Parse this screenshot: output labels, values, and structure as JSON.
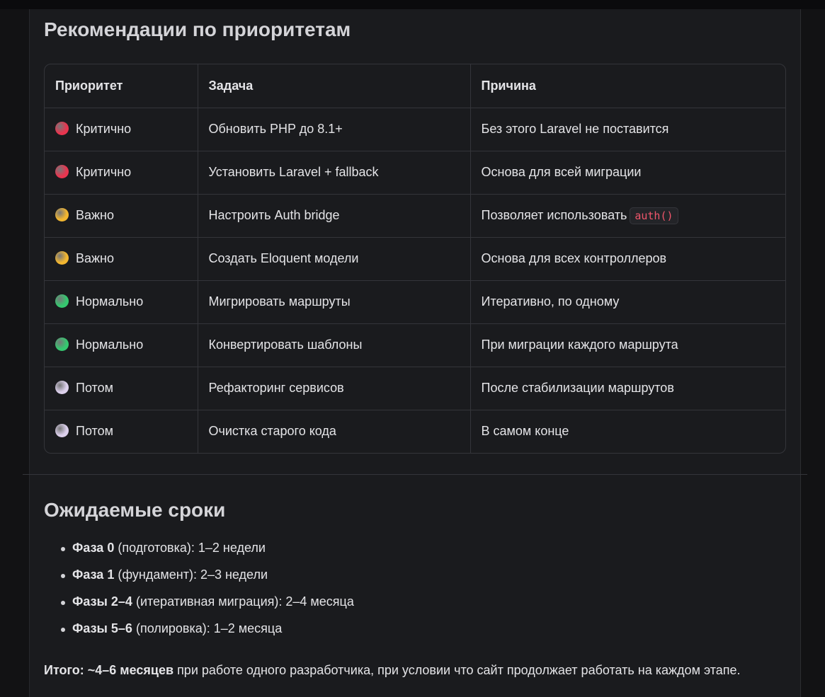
{
  "section1": {
    "title": "Рекомендации по приоритетам",
    "table": {
      "headers": [
        "Приоритет",
        "Задача",
        "Причина"
      ],
      "rows": [
        {
          "priority": "Критично",
          "color": "#e8354f",
          "task": "Обновить PHP до 8.1+",
          "reason": "Без этого Laravel не поставится",
          "code": ""
        },
        {
          "priority": "Критично",
          "color": "#e8354f",
          "task": "Установить Laravel + fallback",
          "reason": "Основа для всей миграции",
          "code": ""
        },
        {
          "priority": "Важно",
          "color": "#f2b630",
          "task": "Настроить Auth bridge",
          "reason": "Позволяет использовать",
          "code": "auth()"
        },
        {
          "priority": "Важно",
          "color": "#f2b630",
          "task": "Создать Eloquent модели",
          "reason": "Основа для всех контроллеров",
          "code": ""
        },
        {
          "priority": "Нормально",
          "color": "#35c76f",
          "task": "Мигрировать маршруты",
          "reason": "Итеративно, по одному",
          "code": ""
        },
        {
          "priority": "Нормально",
          "color": "#35c76f",
          "task": "Конвертировать шаблоны",
          "reason": "При миграции каждого маршрута",
          "code": ""
        },
        {
          "priority": "Потом",
          "color": "#dcd0ec",
          "task": "Рефакторинг сервисов",
          "reason": "После стабилизации маршрутов",
          "code": ""
        },
        {
          "priority": "Потом",
          "color": "#dcd0ec",
          "task": "Очистка старого кода",
          "reason": "В самом конце",
          "code": ""
        }
      ]
    }
  },
  "section2": {
    "title": "Ожидаемые сроки",
    "items": [
      {
        "bold": "Фаза 0",
        "text": " (подготовка): 1–2 недели"
      },
      {
        "bold": "Фаза 1",
        "text": " (фундамент): 2–3 недели"
      },
      {
        "bold": "Фазы 2–4",
        "text": " (итеративная миграция): 2–4 месяца"
      },
      {
        "bold": "Фазы 5–6",
        "text": " (полировка): 1–2 месяца"
      }
    ],
    "summary_bold": "Итого: ~4–6 месяцев",
    "summary_text": " при работе одного разработчика, при условии что сайт продолжает работать на каждом этапе."
  }
}
